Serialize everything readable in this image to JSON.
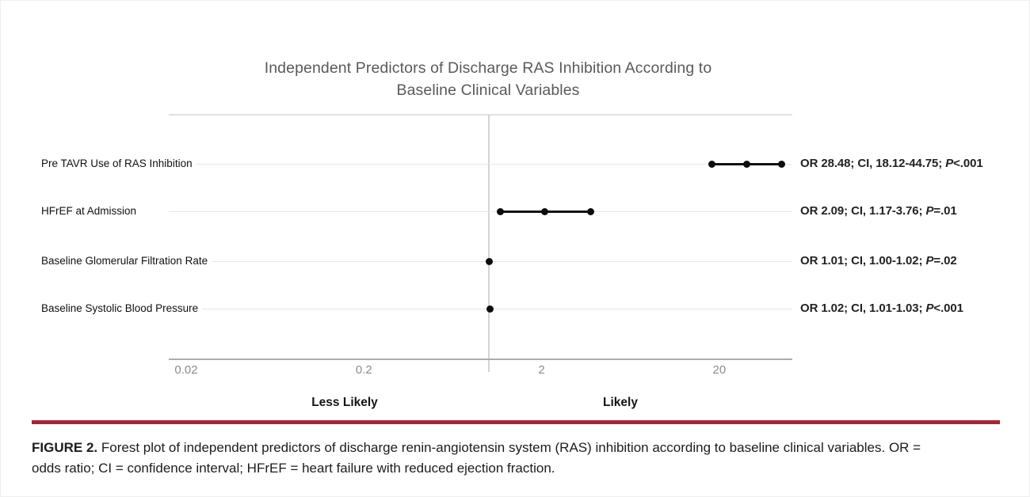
{
  "title": {
    "line1": "Independent Predictors of Discharge RAS Inhibition According to",
    "line2": "Baseline Clinical Variables"
  },
  "chart_data": {
    "type": "scatter",
    "subtype": "forest-plot",
    "x_scale": "log10",
    "x_ticks": [
      "0.02",
      "0.2",
      "2",
      "20"
    ],
    "x_tick_values": [
      0.02,
      0.2,
      2,
      20
    ],
    "x_range": [
      0.016,
      51
    ],
    "reference_line_value": 1,
    "grid": "horizontal-rows",
    "axis_labels": {
      "left": "Less Likely",
      "right": "Likely"
    },
    "rows": [
      {
        "label": "Pre TAVR Use of RAS Inhibition",
        "or": 28.48,
        "ci_low": 18.12,
        "ci_high": 44.75,
        "p": "<.001",
        "ann_prefix": "OR 28.48; CI, 18.12-44.75; ",
        "p_symbol": "P",
        "ann_suffix": "<.001"
      },
      {
        "label": "HFrEF at Admission",
        "or": 2.09,
        "ci_low": 1.17,
        "ci_high": 3.76,
        "p": "=.01",
        "ann_prefix": "OR 2.09; CI, 1.17-3.76; ",
        "p_symbol": "P",
        "ann_suffix": "=.01"
      },
      {
        "label": "Baseline Glomerular Filtration Rate",
        "or": 1.01,
        "ci_low": 1.0,
        "ci_high": 1.02,
        "p": "=.02",
        "ann_prefix": "OR 1.01; CI, 1.00-1.02; ",
        "p_symbol": "P",
        "ann_suffix": "=.02"
      },
      {
        "label": "Baseline Systolic Blood Pressure",
        "or": 1.02,
        "ci_low": 1.01,
        "ci_high": 1.03,
        "p": "<.001",
        "ann_prefix": "OR 1.02; CI, 1.01-1.03; ",
        "p_symbol": "P",
        "ann_suffix": "<.001"
      }
    ]
  },
  "caption": {
    "label": "FIGURE 2.",
    "line1": "Forest plot of independent predictors of discharge renin-angiotensin system (RAS) inhibition according to baseline clinical variables. OR =",
    "line2": "odds ratio; CI = confidence interval; HFrEF = heart failure with reduced ejection fraction."
  },
  "colors": {
    "accent_red": "#A32638",
    "title_gray": "#5a5a5a",
    "marker_black": "#0d0d0d",
    "gridline_gray": "#e6e6e6",
    "axis_gray": "#acacac"
  }
}
